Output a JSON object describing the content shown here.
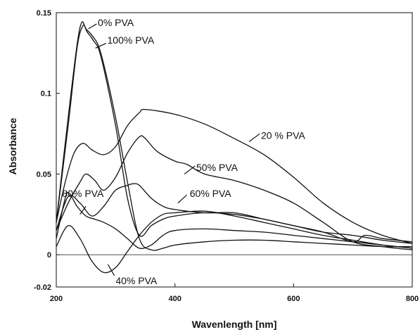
{
  "chart_data": {
    "type": "line",
    "xlabel": "Wavenlength [nm]",
    "ylabel": "Absorbance",
    "xlim": [
      200,
      800
    ],
    "ylim": [
      -0.02,
      0.15
    ],
    "x_ticks": [
      "200",
      "400",
      "600",
      "800"
    ],
    "y_ticks": [
      "-0.02",
      "0",
      "0.05",
      "0.1",
      "0.15"
    ],
    "grid": false,
    "series": [
      {
        "name": "0% PVA",
        "x": [
          200,
          220,
          235,
          243,
          250,
          262,
          275,
          300,
          320,
          340,
          360,
          380,
          400,
          450,
          500,
          550,
          600,
          650,
          700,
          750,
          800
        ],
        "y": [
          0.02,
          0.085,
          0.13,
          0.144,
          0.14,
          0.135,
          0.125,
          0.085,
          0.045,
          0.01,
          0.003,
          0.004,
          0.006,
          0.008,
          0.009,
          0.009,
          0.008,
          0.007,
          0.006,
          0.005,
          0.005
        ]
      },
      {
        "name": "100% PVA",
        "x": [
          200,
          220,
          235,
          245,
          252,
          262,
          275,
          300,
          320,
          340,
          360,
          380,
          400,
          450,
          500,
          550,
          600,
          650,
          700,
          750,
          800
        ],
        "y": [
          0.02,
          0.08,
          0.128,
          0.142,
          0.138,
          0.133,
          0.123,
          0.08,
          0.035,
          0.012,
          0.018,
          0.022,
          0.024,
          0.026,
          0.025,
          0.022,
          0.018,
          0.014,
          0.012,
          0.009,
          0.007
        ]
      },
      {
        "name": "20 % PVA",
        "x": [
          200,
          215,
          230,
          245,
          260,
          280,
          300,
          320,
          340,
          350,
          400,
          450,
          500,
          550,
          600,
          650,
          700,
          750,
          800
        ],
        "y": [
          0.02,
          0.045,
          0.063,
          0.069,
          0.065,
          0.062,
          0.067,
          0.08,
          0.088,
          0.09,
          0.087,
          0.081,
          0.072,
          0.062,
          0.048,
          0.032,
          0.02,
          0.012,
          0.007
        ]
      },
      {
        "name": "50% PVA",
        "x": [
          200,
          220,
          240,
          250,
          265,
          280,
          300,
          320,
          340,
          350,
          370,
          400,
          420,
          450,
          500,
          550,
          600,
          650,
          700,
          750,
          800
        ],
        "y": [
          0.015,
          0.032,
          0.045,
          0.05,
          0.046,
          0.04,
          0.048,
          0.063,
          0.073,
          0.072,
          0.064,
          0.058,
          0.056,
          0.05,
          0.046,
          0.04,
          0.032,
          0.02,
          0.008,
          0.005,
          0.003
        ]
      },
      {
        "name": "60% PVA",
        "x": [
          200,
          220,
          240,
          260,
          280,
          300,
          320,
          330,
          340,
          360,
          380,
          400,
          450,
          500,
          550,
          600,
          650,
          700,
          720,
          750,
          800
        ],
        "y": [
          0.015,
          0.036,
          0.032,
          0.024,
          0.03,
          0.04,
          0.043,
          0.044,
          0.043,
          0.035,
          0.03,
          0.028,
          0.026,
          0.026,
          0.022,
          0.018,
          0.014,
          0.008,
          0.012,
          0.01,
          0.008
        ]
      },
      {
        "name": "80% PVA",
        "x": [
          200,
          215,
          222,
          235,
          250,
          265,
          280,
          300,
          320,
          340,
          360,
          380,
          400,
          450,
          500,
          550,
          600,
          650,
          700,
          750,
          800
        ],
        "y": [
          0.01,
          0.035,
          0.038,
          0.03,
          0.024,
          0.022,
          0.02,
          0.016,
          0.01,
          0.004,
          0.006,
          0.012,
          0.015,
          0.016,
          0.015,
          0.014,
          0.012,
          0.01,
          0.008,
          0.006,
          0.004
        ]
      },
      {
        "name": "40% PVA",
        "x": [
          200,
          220,
          240,
          260,
          280,
          300,
          320,
          340,
          360,
          380,
          400,
          450,
          500,
          550,
          600,
          650,
          700,
          750,
          800
        ],
        "y": [
          0.005,
          0.018,
          0.01,
          -0.004,
          -0.011,
          -0.008,
          0.002,
          0.012,
          0.02,
          0.025,
          0.026,
          0.027,
          0.024,
          0.02,
          0.016,
          0.012,
          0.009,
          0.006,
          0.004
        ]
      }
    ],
    "annotations": [
      {
        "text": "0% PVA",
        "series": "0% PVA"
      },
      {
        "text": "100% PVA",
        "series": "100% PVA"
      },
      {
        "text": "20 % PVA",
        "series": "20 % PVA"
      },
      {
        "text": "50% PVA",
        "series": "50% PVA"
      },
      {
        "text": "60% PVA",
        "series": "60% PVA"
      },
      {
        "text": "80% PVA",
        "series": "80% PVA"
      },
      {
        "text": "40% PVA",
        "series": "40% PVA"
      }
    ]
  }
}
